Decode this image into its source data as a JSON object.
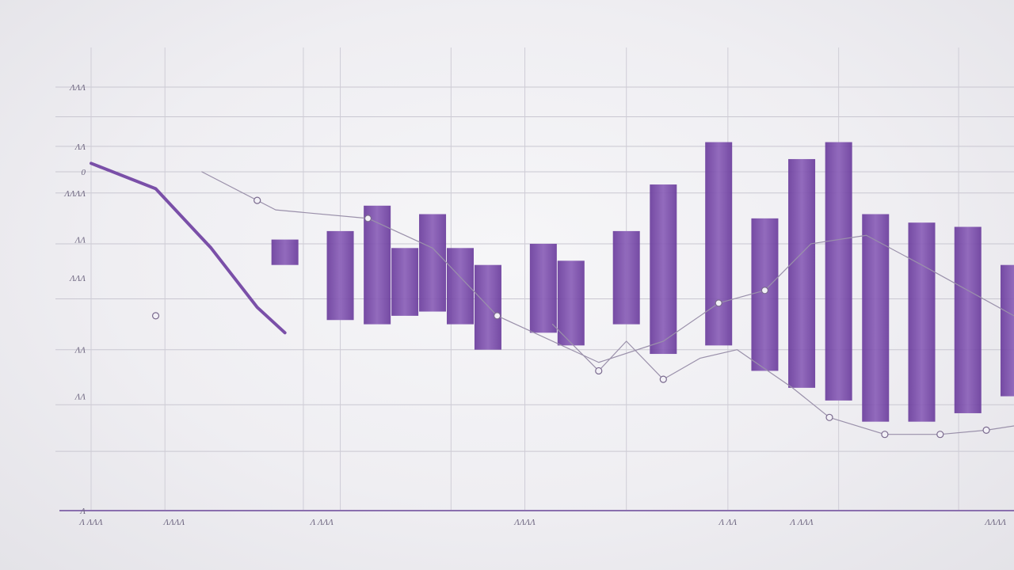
{
  "chart_data": {
    "type": "bar",
    "title": "",
    "xlabel": "",
    "ylabel": "",
    "ylim": [
      0,
      100
    ],
    "grid": true,
    "y_tick_labels": [
      "ɅɅɅ",
      "ɅɅ",
      "0",
      "ɅɅɅɅ",
      "ɅɅ",
      "ɅɅɅ",
      "ɅɅ",
      "ɅɅ",
      "Ʌ"
    ],
    "x_tick_labels": [
      "Ʌ ɅɅɅ",
      "ɅɅɅɅ",
      "Ʌ ɅɅɅ",
      "ɅɅɅɅ",
      "Ʌ ɅɅ",
      "Ʌ ɅɅɅ",
      "ɅɅɅɅ"
    ],
    "bar_color": "#7a4fa8",
    "line_color": "#7a4fa8",
    "bars": [
      {
        "x": 21,
        "top": 64,
        "bottom": 58
      },
      {
        "x": 27,
        "top": 66,
        "bottom": 45
      },
      {
        "x": 31,
        "top": 72,
        "bottom": 44
      },
      {
        "x": 34,
        "top": 62,
        "bottom": 46
      },
      {
        "x": 37,
        "top": 70,
        "bottom": 47
      },
      {
        "x": 40,
        "top": 62,
        "bottom": 44
      },
      {
        "x": 43,
        "top": 58,
        "bottom": 38
      },
      {
        "x": 49,
        "top": 63,
        "bottom": 42
      },
      {
        "x": 52,
        "top": 59,
        "bottom": 39
      },
      {
        "x": 58,
        "top": 66,
        "bottom": 44
      },
      {
        "x": 62,
        "top": 77,
        "bottom": 37
      },
      {
        "x": 68,
        "top": 87,
        "bottom": 39
      },
      {
        "x": 73,
        "top": 69,
        "bottom": 33
      },
      {
        "x": 77,
        "top": 83,
        "bottom": 29
      },
      {
        "x": 81,
        "top": 87,
        "bottom": 26
      },
      {
        "x": 85,
        "top": 70,
        "bottom": 21
      },
      {
        "x": 90,
        "top": 68,
        "bottom": 21
      },
      {
        "x": 95,
        "top": 67,
        "bottom": 23
      },
      {
        "x": 100,
        "top": 58,
        "bottom": 27
      }
    ],
    "series": [
      {
        "x": [
          0,
          7,
          13,
          18,
          21
        ],
        "y": [
          82,
          76,
          62,
          48,
          42
        ]
      },
      {
        "x": [
          12,
          20,
          30,
          37,
          44,
          55,
          62,
          68,
          73,
          78,
          84,
          90,
          100
        ],
        "y": [
          80,
          71,
          69,
          62,
          46,
          35,
          40,
          49,
          52,
          63,
          65,
          58,
          46
        ]
      },
      {
        "x": [
          50,
          55,
          58,
          62,
          66,
          70,
          76,
          80,
          86,
          92,
          97,
          100
        ],
        "y": [
          44,
          33,
          40,
          31,
          36,
          38,
          29,
          22,
          18,
          18,
          19,
          20
        ]
      }
    ],
    "markers": [
      {
        "series": 1,
        "x": [
          7,
          18,
          30,
          44,
          68,
          73
        ]
      },
      {
        "series": 2,
        "x": [
          55,
          62,
          80,
          86,
          92,
          97
        ]
      }
    ]
  }
}
